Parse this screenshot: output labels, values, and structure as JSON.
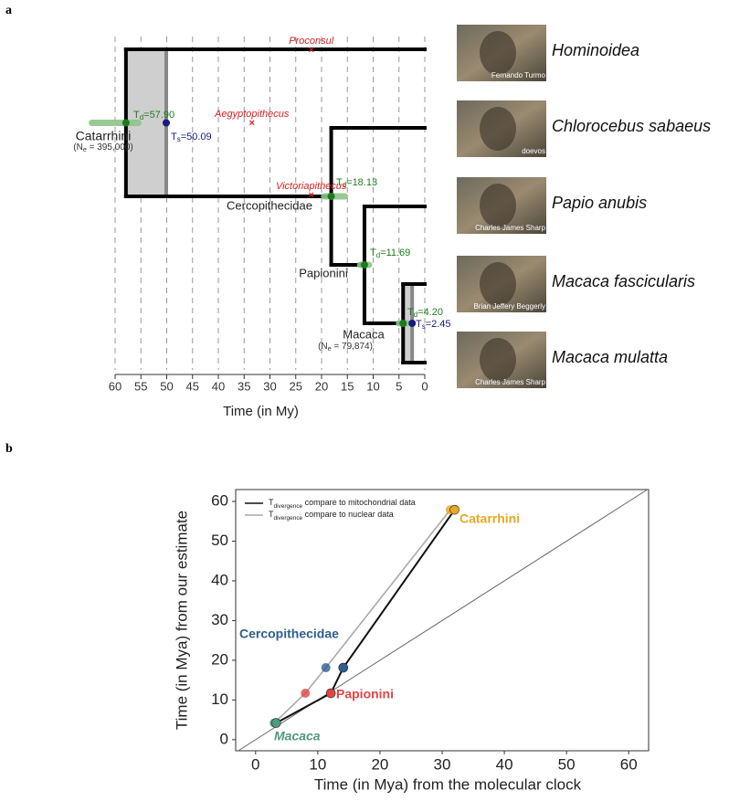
{
  "chart_data": [
    {
      "type": "tree",
      "panel": "a",
      "xlabel": "Time (in My)",
      "xlim": [
        60,
        0
      ],
      "xticks": [
        60,
        55,
        50,
        45,
        40,
        35,
        30,
        25,
        20,
        15,
        10,
        5,
        0
      ],
      "grid": true,
      "symbol": "T",
      "d_sub": "d",
      "s_sub": "s",
      "ne_prefix": "(N",
      "ne_sub": "e",
      "leaves": [
        {
          "name": "Hominoidea",
          "credit": "Fernando Turmo"
        },
        {
          "name": "Chlorocebus sabaeus",
          "credit": "doevos"
        },
        {
          "name": "Papio anubis",
          "credit": "Charles James Sharp"
        },
        {
          "name": "Macaca fascicularis",
          "credit": "Brian Jeffery Beggerly"
        },
        {
          "name": "Macaca mulatta",
          "credit": "Charles James Sharp"
        }
      ],
      "nodes": [
        {
          "name": "Catarrhini",
          "td": 57.9,
          "td_label": "=57.90",
          "ts": 50.09,
          "ts_label": "=50.09",
          "ne": 395000,
          "ne_label": " = 395,000)",
          "ci": [
            64.5,
            55.5
          ]
        },
        {
          "name": "Cercopithecidae",
          "td": 18.13,
          "td_label": "=18.13",
          "ci": [
            19.5,
            15.5
          ]
        },
        {
          "name": "Papionini",
          "td": 11.69,
          "td_label": "=11.69",
          "ci": [
            12.5,
            10.8
          ]
        },
        {
          "name": "Macaca",
          "td": 4.2,
          "td_label": "=4.20",
          "ts": 2.45,
          "ts_label": "=2.45",
          "ne": 79874,
          "ne_label": " = 79,874)",
          "ci": [
            5.0,
            3.4
          ]
        }
      ],
      "fossils": [
        {
          "name": "Proconsul",
          "time": 22
        },
        {
          "name": "Aegyptopithecus",
          "time": 33.5
        },
        {
          "name": "Victoriapithecus",
          "time": 22
        }
      ]
    },
    {
      "type": "line",
      "panel": "b",
      "xlabel": "Time (in Mya) from the molecular clock",
      "ylabel": "Time (in Mya) from our estimate",
      "xlim": [
        -3.2,
        63.2
      ],
      "ylim": [
        -2.8,
        63
      ],
      "xticks": [
        0,
        10,
        20,
        30,
        40,
        50,
        60
      ],
      "yticks": [
        0,
        10,
        20,
        30,
        40,
        50,
        60
      ],
      "categories": [
        "Macaca",
        "Papionini",
        "Cercopithecidae",
        "Catarrhini"
      ],
      "category_colors": [
        "#4f9a80",
        "#e04545",
        "#2e5f8f",
        "#e8a820"
      ],
      "y": [
        4.2,
        11.69,
        18.13,
        57.9
      ],
      "series": [
        {
          "name": {
            "symbol": "T",
            "sub": "divergence",
            "text": " compare to mitochondrial data"
          },
          "color": "#111111",
          "x": [
            3.3,
            12.1,
            14.1,
            32.0
          ]
        },
        {
          "name": {
            "symbol": "T",
            "sub": "divergence",
            "text": " compare to nuclear data"
          },
          "color": "#aaaaaa",
          "x": [
            3.0,
            8.0,
            11.3,
            31.3
          ]
        }
      ]
    }
  ]
}
